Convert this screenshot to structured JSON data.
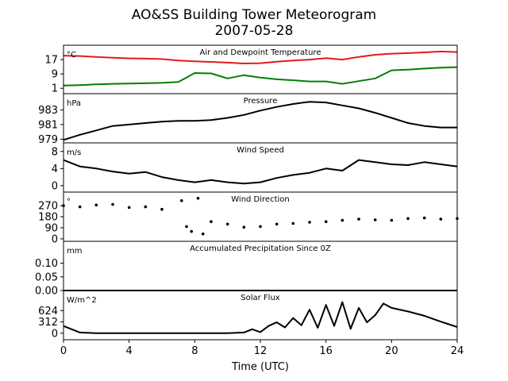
{
  "title": {
    "line1": "AO&SS Building Tower Meteorogram",
    "line2": "2007-05-28"
  },
  "xlabel": "Time (UTC)",
  "colors": {
    "temp": "#e41a1c",
    "dewpoint": "#008000",
    "default": "#000000"
  },
  "chart_data": [
    {
      "type": "line",
      "title": "Air and Dewpoint Temperature",
      "unit": "°C",
      "ylim": [
        -2,
        25
      ],
      "yticks": [
        1,
        9,
        17
      ],
      "ytick_labels": [
        "1",
        "9",
        "17"
      ],
      "series": [
        {
          "color": "temp",
          "x": [
            0,
            1,
            2,
            3,
            4,
            5,
            6,
            7,
            8,
            9,
            10,
            11,
            12,
            13,
            14,
            15,
            16,
            17,
            18,
            19,
            20,
            21,
            22,
            23,
            24
          ],
          "y": [
            19.2,
            19.0,
            18.5,
            18.0,
            17.7,
            17.5,
            17.3,
            16.5,
            16.0,
            15.7,
            15.3,
            14.8,
            15.0,
            15.8,
            16.5,
            17.0,
            17.8,
            17.0,
            18.5,
            19.7,
            20.3,
            20.6,
            21.0,
            21.5,
            21.2
          ]
        },
        {
          "color": "dewpoint",
          "x": [
            0,
            1,
            2,
            3,
            4,
            5,
            6,
            7,
            8,
            9,
            10,
            11,
            12,
            13,
            14,
            15,
            16,
            17,
            18,
            19,
            20,
            21,
            22,
            23,
            24
          ],
          "y": [
            2.5,
            2.8,
            3.2,
            3.5,
            3.6,
            3.8,
            4.0,
            4.5,
            9.5,
            9.3,
            6.5,
            8.3,
            7.0,
            6.0,
            5.5,
            4.8,
            4.8,
            3.5,
            5.0,
            6.5,
            11.0,
            11.4,
            12.0,
            12.5,
            12.8
          ]
        }
      ]
    },
    {
      "type": "line",
      "title": "Pressure",
      "unit": "hPa",
      "ylim": [
        978.5,
        985.2
      ],
      "yticks": [
        979,
        981,
        983
      ],
      "ytick_labels": [
        "979",
        "981",
        "983"
      ],
      "series": [
        {
          "color": "default",
          "x": [
            0,
            1,
            2,
            3,
            4,
            5,
            6,
            7,
            8,
            9,
            10,
            11,
            12,
            13,
            14,
            15,
            16,
            17,
            18,
            19,
            20,
            21,
            22,
            23,
            24
          ],
          "y": [
            978.9,
            979.6,
            980.2,
            980.8,
            981.0,
            981.2,
            981.4,
            981.5,
            981.5,
            981.6,
            981.9,
            982.3,
            982.9,
            983.4,
            983.8,
            984.1,
            984.0,
            983.6,
            983.2,
            982.6,
            981.9,
            981.2,
            980.8,
            980.6,
            980.6
          ]
        }
      ]
    },
    {
      "type": "line",
      "title": "Wind Speed",
      "unit": "m/s",
      "ylim": [
        -1.5,
        10
      ],
      "yticks": [
        0,
        4,
        8
      ],
      "ytick_labels": [
        "0",
        "4",
        "8"
      ],
      "series": [
        {
          "color": "default",
          "x": [
            0,
            1,
            2,
            3,
            4,
            5,
            6,
            7,
            8,
            9,
            10,
            11,
            12,
            13,
            14,
            15,
            16,
            17,
            18,
            19,
            20,
            21,
            22,
            23,
            24
          ],
          "y": [
            6.0,
            4.5,
            4.0,
            3.3,
            2.8,
            3.2,
            2.0,
            1.3,
            0.8,
            1.3,
            0.8,
            0.5,
            0.8,
            1.8,
            2.5,
            3.0,
            4.0,
            3.5,
            6.0,
            5.5,
            5.0,
            4.8,
            5.5,
            5.0,
            4.5
          ]
        }
      ]
    },
    {
      "type": "scatter",
      "title": "Wind Direction",
      "unit": "°",
      "ylim": [
        -20,
        380
      ],
      "yticks": [
        0,
        90,
        180,
        270
      ],
      "ytick_labels": [
        "0",
        "90",
        "180",
        "270"
      ],
      "series": [
        {
          "color": "default",
          "x": [
            0,
            1,
            2,
            3,
            4,
            5,
            6,
            7.2,
            7.5,
            7.8,
            8.2,
            8.5,
            9,
            10,
            11,
            12,
            13,
            14,
            15,
            16,
            17,
            18,
            19,
            20,
            21,
            22,
            23,
            24
          ],
          "y": [
            270,
            260,
            275,
            280,
            255,
            260,
            240,
            310,
            100,
            60,
            330,
            40,
            140,
            120,
            95,
            100,
            120,
            125,
            135,
            140,
            150,
            160,
            155,
            150,
            165,
            170,
            160,
            165
          ]
        }
      ]
    },
    {
      "type": "line",
      "title": "Accumulated Precipitation Since 0Z",
      "unit": "mm",
      "ylim": [
        0,
        0.18
      ],
      "yticks": [
        0.0,
        0.05,
        0.1
      ],
      "ytick_labels": [
        "0.00",
        "0.05",
        "0.10"
      ],
      "series": [
        {
          "color": "default",
          "x": [
            0,
            24
          ],
          "y": [
            0,
            0
          ]
        }
      ]
    },
    {
      "type": "line",
      "title": "Solar Flux",
      "unit": "W/m^2",
      "ylim": [
        -180,
        1180
      ],
      "yticks": [
        0,
        312,
        624
      ],
      "ytick_labels": [
        "0",
        "312",
        "624"
      ],
      "series": [
        {
          "color": "default",
          "x": [
            0,
            0.5,
            1,
            2,
            3,
            4,
            5,
            6,
            7,
            8,
            9,
            10,
            11,
            11.5,
            12,
            12.5,
            13,
            13.5,
            14,
            14.5,
            15,
            15.5,
            16,
            16.5,
            17,
            17.5,
            18,
            18.5,
            19,
            19.5,
            20,
            21,
            22,
            23,
            24
          ],
          "y": [
            200,
            110,
            20,
            0,
            0,
            0,
            0,
            0,
            0,
            0,
            0,
            0,
            20,
            110,
            30,
            200,
            300,
            160,
            420,
            220,
            650,
            150,
            780,
            200,
            860,
            120,
            700,
            300,
            500,
            820,
            700,
            600,
            480,
            320,
            170
          ]
        }
      ]
    }
  ],
  "xaxis": {
    "lim": [
      0,
      24
    ],
    "ticks": [
      0,
      4,
      8,
      12,
      16,
      20,
      24
    ],
    "tick_labels": [
      "0",
      "4",
      "8",
      "12",
      "16",
      "20",
      "24"
    ]
  }
}
